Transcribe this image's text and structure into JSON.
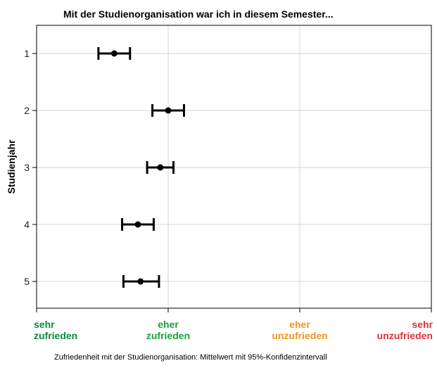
{
  "chart_data": {
    "type": "errorbar",
    "title": "Mit der Studienorganisation war ich in diesem Semester...",
    "ylabel": "Studienjahr",
    "xlabel": "Zufriedenheit mit der Studienorganisation: Mittelwert mit 95%-Konfidenzintervall",
    "xlim": [
      1,
      4
    ],
    "grid": true,
    "categories": [
      "1",
      "2",
      "3",
      "4",
      "5"
    ],
    "points": [
      {
        "category": "1",
        "mean": 1.59,
        "lower": 1.47,
        "upper": 1.71
      },
      {
        "category": "2",
        "mean": 2.0,
        "lower": 1.88,
        "upper": 2.12
      },
      {
        "category": "3",
        "mean": 1.94,
        "lower": 1.84,
        "upper": 2.04
      },
      {
        "category": "4",
        "mean": 1.77,
        "lower": 1.65,
        "upper": 1.89
      },
      {
        "category": "5",
        "mean": 1.79,
        "lower": 1.66,
        "upper": 1.93
      }
    ],
    "x_ticks": [
      {
        "value": 1,
        "line1": "sehr",
        "line2": "zufrieden",
        "color": "#0b8a3e"
      },
      {
        "value": 2,
        "line1": "eher",
        "line2": "zufrieden",
        "color": "#1e9e3c"
      },
      {
        "value": 3,
        "line1": "eher",
        "line2": "unzufrieden",
        "color": "#f0961e"
      },
      {
        "value": 4,
        "line1": "sehr",
        "line2": "unzufrieden",
        "color": "#e0323c"
      }
    ]
  }
}
